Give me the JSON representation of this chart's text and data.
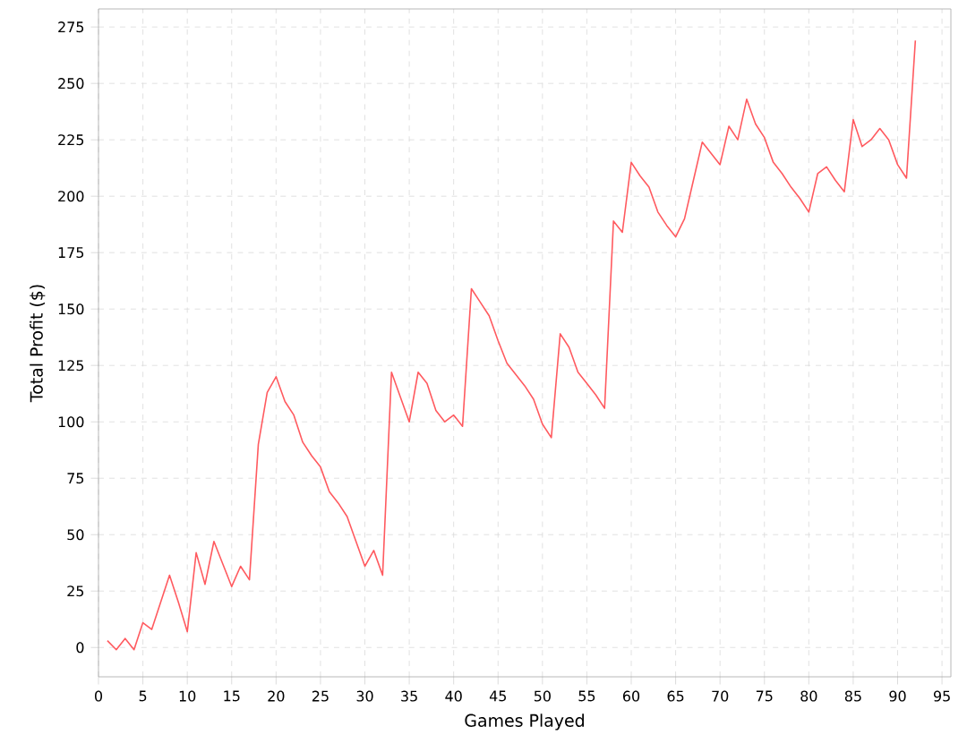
{
  "chart_data": {
    "type": "line",
    "xlabel": "Games Played",
    "ylabel": "Total Profit ($)",
    "x": [
      1,
      2,
      3,
      4,
      5,
      6,
      7,
      8,
      9,
      10,
      11,
      12,
      13,
      14,
      15,
      16,
      17,
      18,
      19,
      20,
      21,
      22,
      23,
      24,
      25,
      26,
      27,
      28,
      29,
      30,
      31,
      32,
      33,
      34,
      35,
      36,
      37,
      38,
      39,
      40,
      41,
      42,
      43,
      44,
      45,
      46,
      47,
      48,
      49,
      50,
      51,
      52,
      53,
      54,
      55,
      56,
      57,
      58,
      59,
      60,
      61,
      62,
      63,
      64,
      65,
      66,
      67,
      68,
      69,
      70,
      71,
      72,
      73,
      74,
      75,
      76,
      77,
      78,
      79,
      80,
      81,
      82,
      83,
      84,
      85,
      86,
      87,
      88,
      89,
      90,
      91,
      92
    ],
    "series": [
      {
        "color": "#ff5a5f",
        "values": [
          3,
          -1,
          4,
          -1,
          11,
          8,
          20,
          32,
          20,
          7,
          42,
          28,
          47,
          37,
          27,
          36,
          30,
          90,
          113,
          120,
          109,
          103,
          91,
          85,
          80,
          69,
          64,
          58,
          47,
          36,
          43,
          32,
          122,
          111,
          100,
          122,
          117,
          105,
          100,
          103,
          98,
          159,
          153,
          147,
          136,
          126,
          121,
          116,
          110,
          99,
          93,
          139,
          133,
          122,
          117,
          112,
          106,
          189,
          184,
          215,
          209,
          204,
          193,
          187,
          182,
          190,
          207,
          224,
          219,
          214,
          231,
          225,
          243,
          232,
          226,
          215,
          210,
          204,
          199,
          193,
          210,
          213,
          207,
          202,
          234,
          222,
          225,
          230,
          225,
          214,
          208,
          269
        ]
      }
    ],
    "xlim": [
      0,
      96
    ],
    "ylim": [
      -13,
      283
    ],
    "xticks": [
      0,
      5,
      10,
      15,
      20,
      25,
      30,
      35,
      40,
      45,
      50,
      55,
      60,
      65,
      70,
      75,
      80,
      85,
      90,
      95
    ],
    "yticks": [
      0,
      25,
      50,
      75,
      100,
      125,
      150,
      175,
      200,
      225,
      250,
      275
    ],
    "grid": true,
    "marker": "none",
    "line_style": "solid"
  }
}
